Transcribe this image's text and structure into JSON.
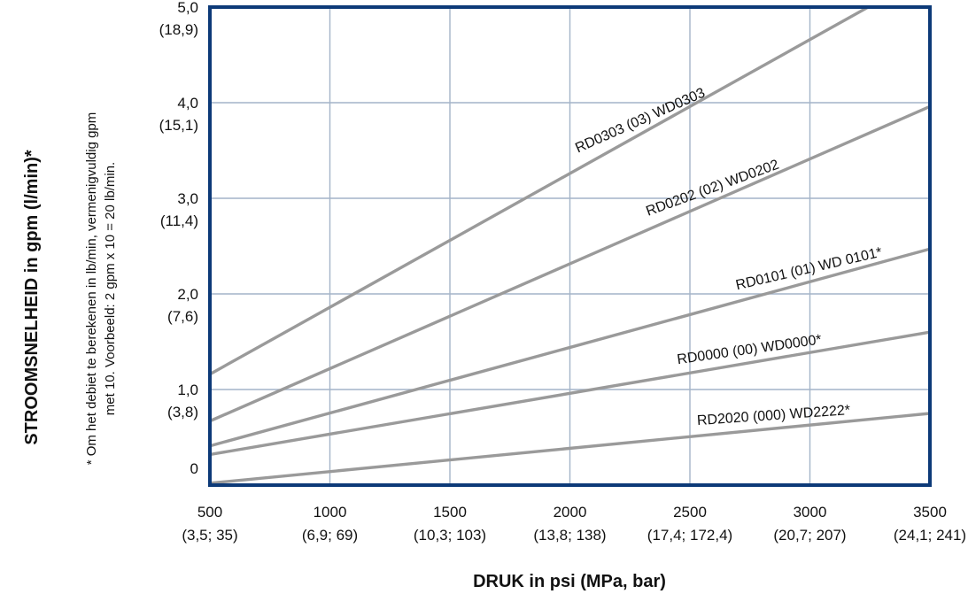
{
  "chart_data": {
    "type": "line",
    "xlabel": "DRUK in psi (MPa, bar)",
    "ylabel": "STROOMSNELHEID in gpm (l/min)*",
    "footnote": {
      "line1": "* Om het debiet te berekenen in lb/min, vermenigvuldig gpm",
      "line2": "met 10. Voorbeeld: 2 gpm x 10 = 20 lb/min."
    },
    "xlim": [
      500,
      3500
    ],
    "ylim": [
      0,
      5.0
    ],
    "grid": true,
    "x_ticks": [
      {
        "value": 500,
        "label": "500",
        "sublabel": "(3,5; 35)"
      },
      {
        "value": 1000,
        "label": "1000",
        "sublabel": "(6,9; 69)"
      },
      {
        "value": 1500,
        "label": "1500",
        "sublabel": "(10,3; 103)"
      },
      {
        "value": 2000,
        "label": "2000",
        "sublabel": "(13,8; 138)"
      },
      {
        "value": 2500,
        "label": "2500",
        "sublabel": "(17,4; 172,4)"
      },
      {
        "value": 3000,
        "label": "3000",
        "sublabel": "(20,7; 207)"
      },
      {
        "value": 3500,
        "label": "3500",
        "sublabel": "(24,1; 241)"
      }
    ],
    "y_ticks": [
      {
        "value": 0,
        "label": "0",
        "sublabel": ""
      },
      {
        "value": 1.0,
        "label": "1,0",
        "sublabel": "(3,8)"
      },
      {
        "value": 2.0,
        "label": "2,0",
        "sublabel": "(7,6)"
      },
      {
        "value": 3.0,
        "label": "3,0",
        "sublabel": "(11,4)"
      },
      {
        "value": 4.0,
        "label": "4,0",
        "sublabel": "(15,1)"
      },
      {
        "value": 5.0,
        "label": "5,0",
        "sublabel": "(18,9)"
      }
    ],
    "series": [
      {
        "name": "RD0303 (03) WD0303",
        "x": [
          500,
          3500
        ],
        "y": [
          1.16,
          5.36
        ],
        "label_x": 2300,
        "label_angle": -24
      },
      {
        "name": "RD0202 (02) WD0202",
        "x": [
          500,
          3500
        ],
        "y": [
          0.67,
          3.96
        ],
        "label_x": 2600,
        "label_angle": -20
      },
      {
        "name": "RD0101 (01) WD 0101*",
        "x": [
          500,
          3500
        ],
        "y": [
          0.41,
          2.47
        ],
        "label_x": 3000,
        "label_angle": -13
      },
      {
        "name": "RD0000 (00) WD0000*",
        "x": [
          500,
          3500
        ],
        "y": [
          0.32,
          1.6
        ],
        "label_x": 2750,
        "label_angle": -8
      },
      {
        "name": "RD2020 (000) WD2222*",
        "x": [
          500,
          3500
        ],
        "y": [
          0.02,
          0.75
        ],
        "label_x": 2850,
        "label_angle": -4
      }
    ],
    "colors": {
      "line": "#9a9a9a",
      "grid": "#a4b4c8",
      "frame": "#0d3a78",
      "text": "#111111"
    }
  }
}
